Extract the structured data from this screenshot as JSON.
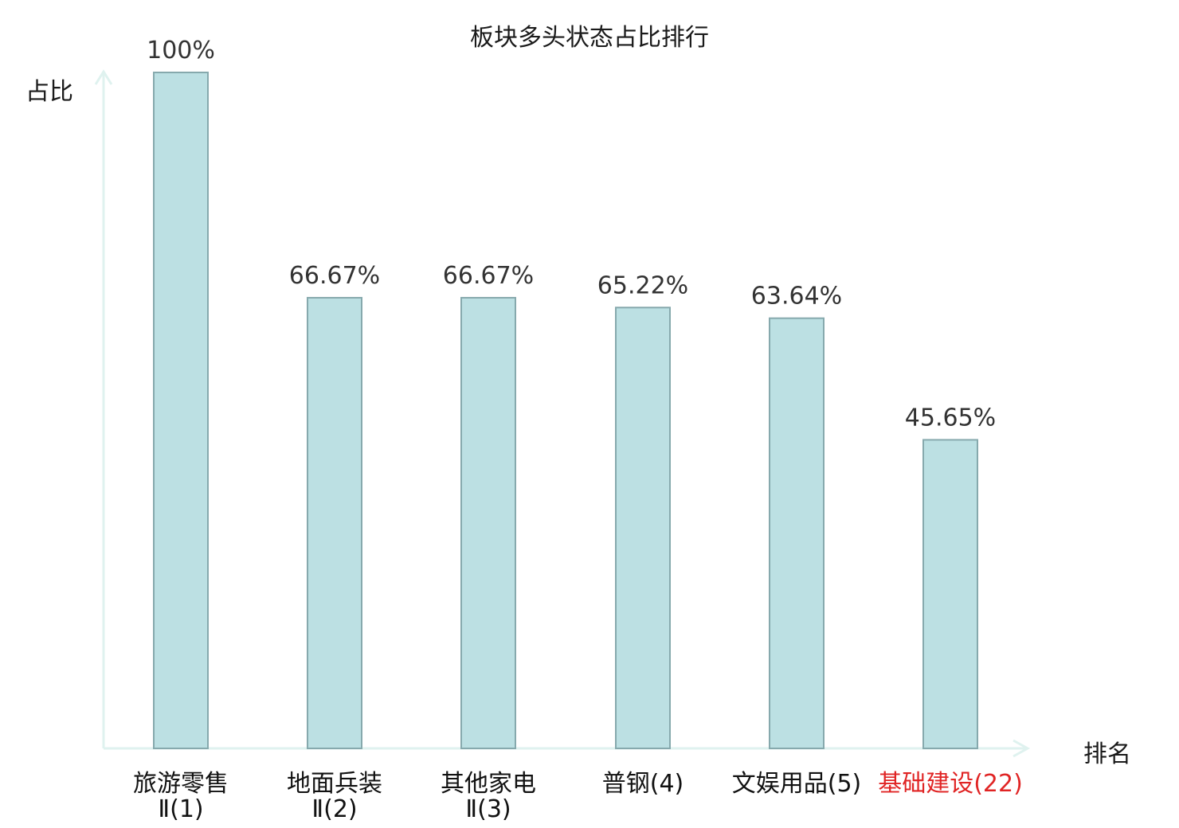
{
  "chart_data": {
    "type": "bar",
    "title": "板块多头状态占比排行",
    "ylabel": "占比",
    "xlabel": "排名",
    "ylim": [
      0,
      100
    ],
    "grid": false,
    "legend": "none",
    "categories": [
      {
        "name_lines": [
          "旅游零售",
          "Ⅱ(1)"
        ],
        "label": "100%",
        "highlight": false
      },
      {
        "name_lines": [
          "地面兵装",
          "Ⅱ(2)"
        ],
        "label": "66.67%",
        "highlight": false
      },
      {
        "name_lines": [
          "其他家电",
          "Ⅱ(3)"
        ],
        "label": "66.67%",
        "highlight": false
      },
      {
        "name_lines": [
          "普钢(4)"
        ],
        "label": "65.22%",
        "highlight": false
      },
      {
        "name_lines": [
          "文娱用品(5)"
        ],
        "label": "63.64%",
        "highlight": false
      },
      {
        "name_lines": [
          "基础建设(22)"
        ],
        "label": "45.65%",
        "highlight": true
      }
    ],
    "values": [
      100,
      66.67,
      66.67,
      65.22,
      63.64,
      45.65
    ],
    "colors": {
      "bar_fill": "#bce0e3",
      "bar_stroke": "#86a9ad",
      "axis": "#dff2ef",
      "value_label": "#333333",
      "category_label": "#111111",
      "highlight": "#e02424"
    }
  }
}
